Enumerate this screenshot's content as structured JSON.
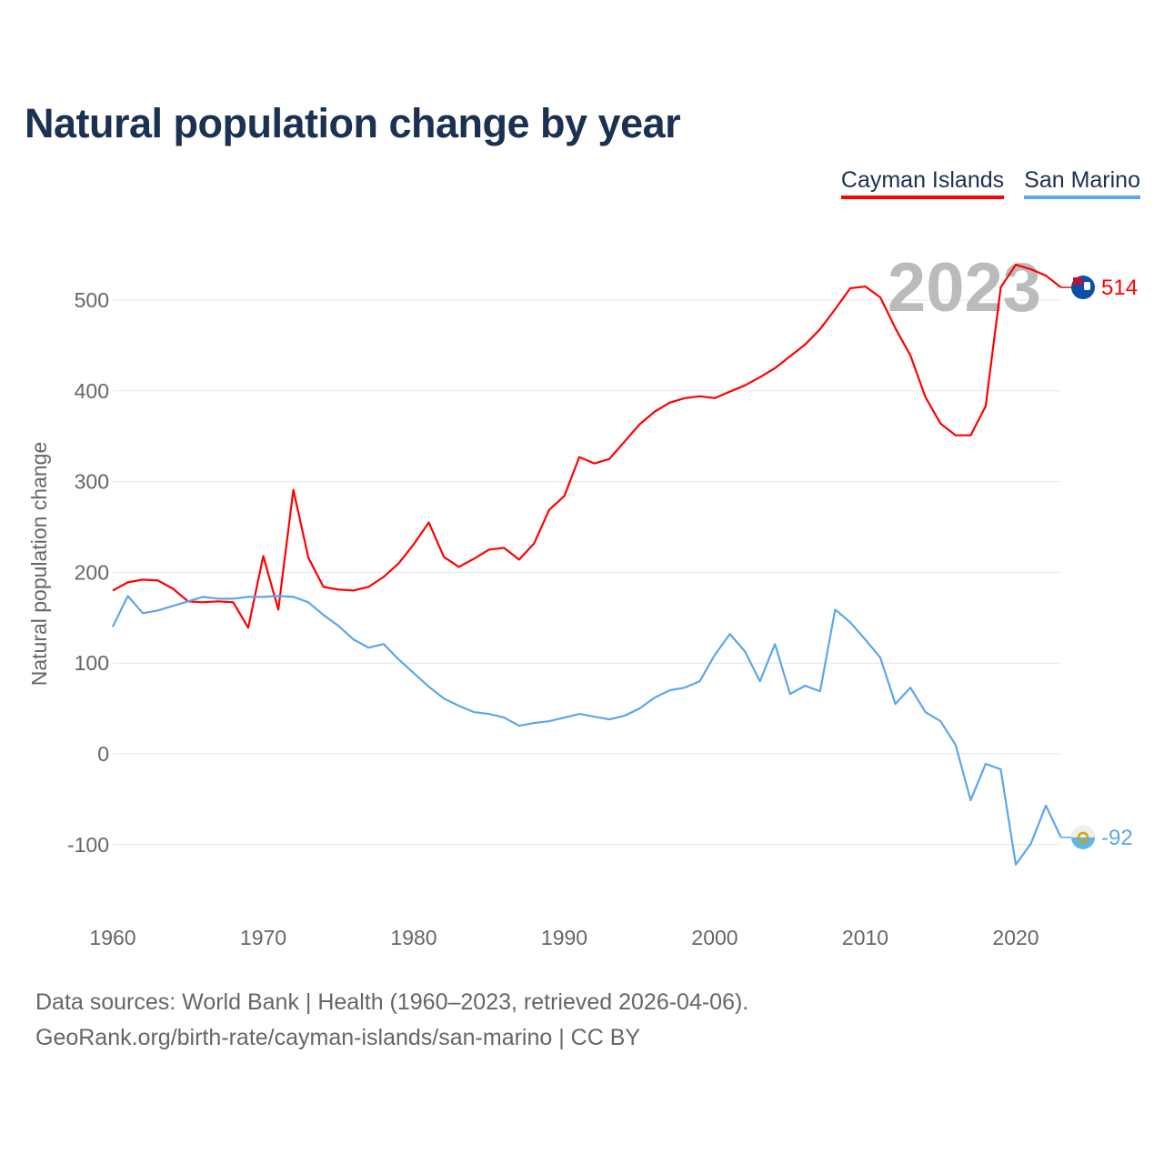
{
  "chart_data": {
    "type": "line",
    "title": "Natural population change by year",
    "xlabel": "",
    "ylabel": "Natural population change",
    "xlim": [
      1960,
      2023
    ],
    "ylim": [
      -150,
      550
    ],
    "x_ticks": [
      "1960",
      "1970",
      "1980",
      "1990",
      "2000",
      "2010",
      "2020"
    ],
    "y_ticks": [
      "500",
      "400",
      "300",
      "200",
      "100",
      "0",
      "-100"
    ],
    "grid": true,
    "legend_position": "top-right",
    "current_year": "2023",
    "x": [
      1960,
      1961,
      1962,
      1963,
      1964,
      1965,
      1966,
      1967,
      1968,
      1969,
      1970,
      1971,
      1972,
      1973,
      1974,
      1975,
      1976,
      1977,
      1978,
      1979,
      1980,
      1981,
      1982,
      1983,
      1984,
      1985,
      1986,
      1987,
      1988,
      1989,
      1990,
      1991,
      1992,
      1993,
      1994,
      1995,
      1996,
      1997,
      1998,
      1999,
      2000,
      2001,
      2002,
      2003,
      2004,
      2005,
      2006,
      2007,
      2008,
      2009,
      2010,
      2011,
      2012,
      2013,
      2014,
      2015,
      2016,
      2017,
      2018,
      2019,
      2020,
      2021,
      2022,
      2023
    ],
    "series": [
      {
        "name": "Cayman Islands",
        "color": "#ff0000",
        "end_label": "514",
        "values": [
          180,
          189,
          192,
          191,
          182,
          168,
          167,
          168,
          167,
          139,
          218,
          159,
          291,
          216,
          184,
          181,
          180,
          184,
          195,
          210,
          231,
          255,
          217,
          206,
          215,
          225,
          227,
          214,
          232,
          269,
          284,
          327,
          320,
          325,
          344,
          363,
          377,
          387,
          392,
          394,
          392,
          399,
          406,
          415,
          425,
          438,
          451,
          468,
          490,
          513,
          515,
          503,
          469,
          439,
          393,
          364,
          351,
          351,
          383,
          514,
          539,
          534,
          527,
          514
        ]
      },
      {
        "name": "San Marino",
        "color": "#5ba6ec",
        "end_label": "-92",
        "values": [
          140,
          174,
          155,
          158,
          163,
          168,
          173,
          171,
          171,
          173,
          173,
          174,
          173,
          167,
          153,
          141,
          126,
          117,
          121,
          104,
          89,
          74,
          61,
          53,
          46,
          44,
          40,
          31,
          34,
          36,
          40,
          44,
          41,
          38,
          42,
          50,
          62,
          70,
          73,
          80,
          109,
          132,
          113,
          80,
          121,
          66,
          75,
          69,
          159,
          145,
          126,
          106,
          55,
          73,
          46,
          36,
          10,
          -51,
          -11,
          -17,
          -122,
          -99,
          -57,
          -92
        ]
      }
    ]
  },
  "footer": {
    "line1": "Data sources: World Bank | Health (1960–2023, retrieved 2026-04-06).",
    "line2": "GeoRank.org/birth-rate/cayman-islands/san-marino | CC BY"
  }
}
